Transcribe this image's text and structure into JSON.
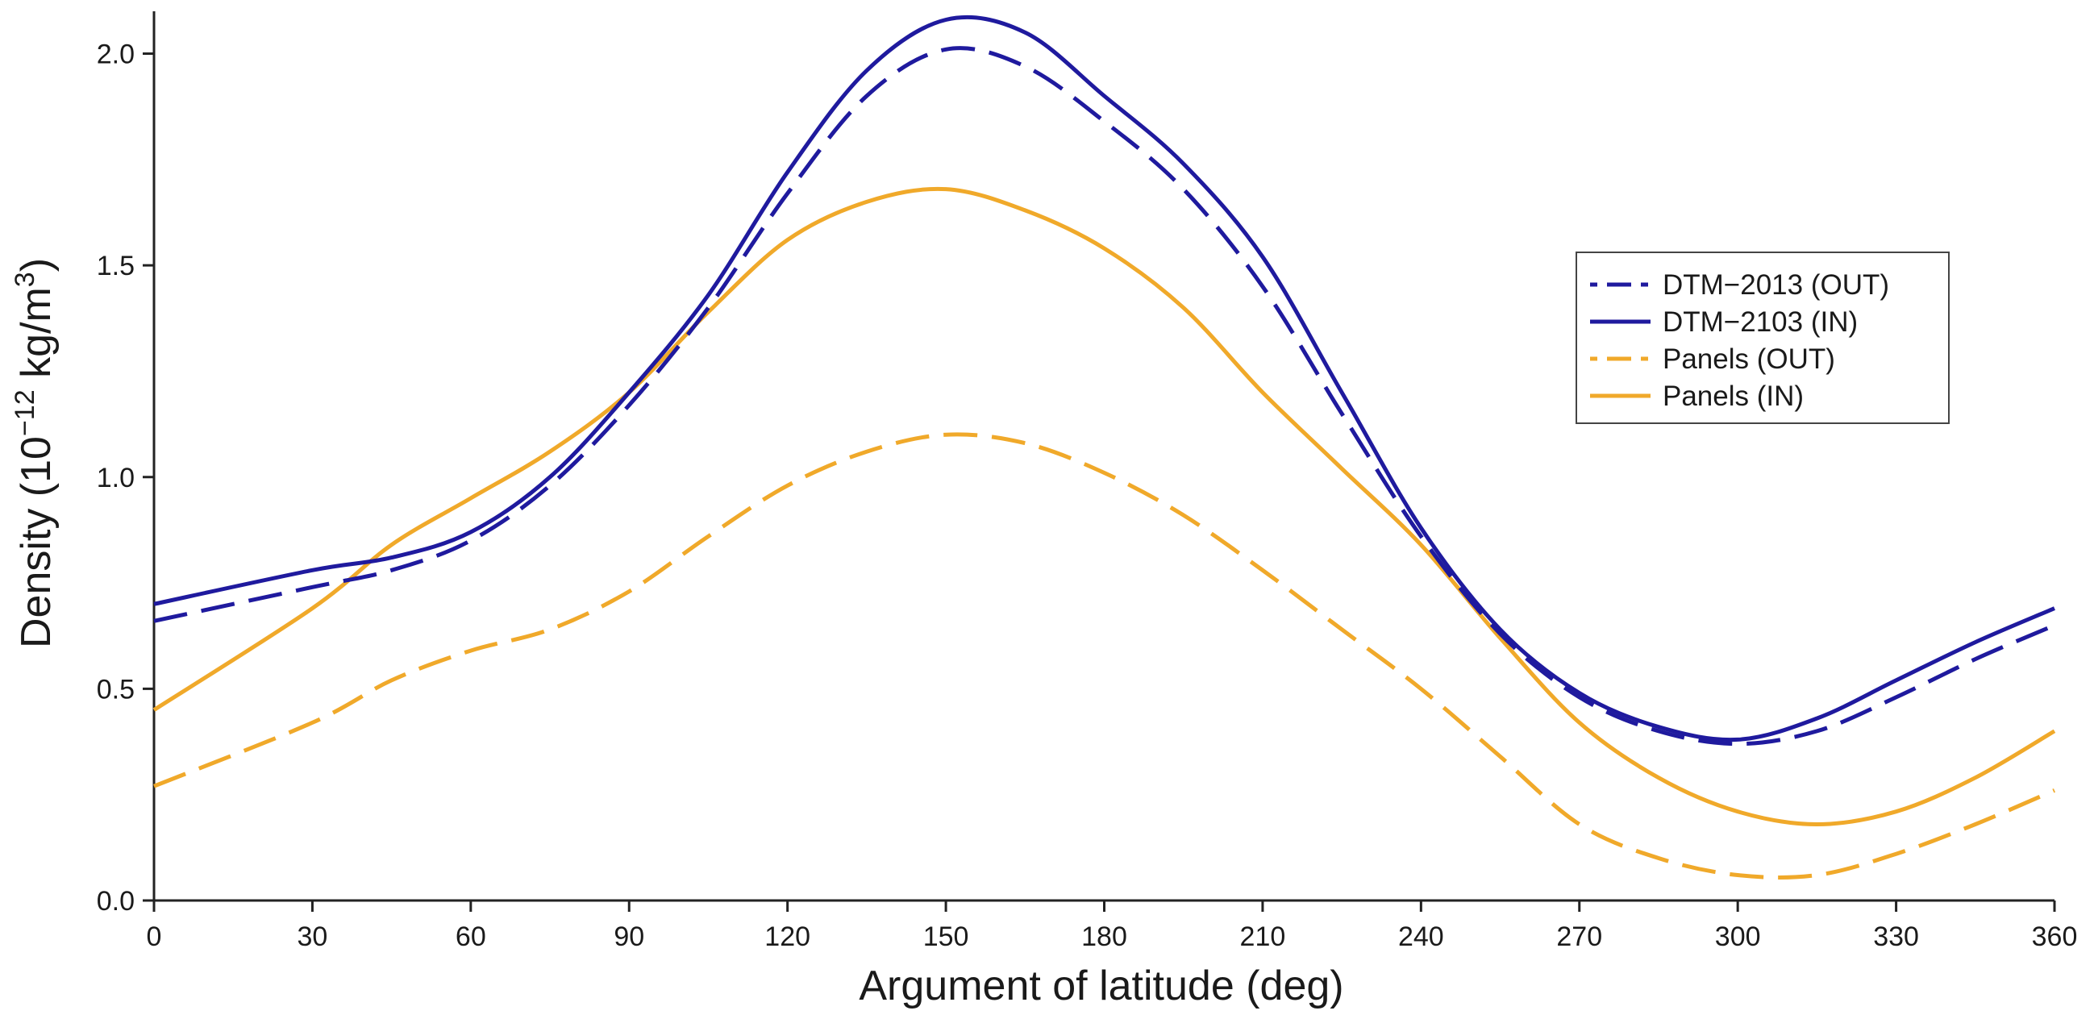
{
  "chart_data": {
    "type": "line",
    "xlabel": "Argument of latitude (deg)",
    "ylabel": {
      "prefix": "Density (10",
      "exp1": "−12",
      "mid": " kg/m",
      "exp2": "3",
      "suffix": ")"
    },
    "xlim": [
      0,
      360
    ],
    "ylim": [
      0,
      2.1
    ],
    "xticks": [
      0,
      30,
      60,
      90,
      120,
      150,
      180,
      210,
      240,
      270,
      300,
      330,
      360
    ],
    "yticks": [
      "0.0",
      "0.5",
      "1.0",
      "1.5",
      "2.0"
    ],
    "grid": false,
    "legend_position": "right",
    "series": [
      {
        "name": "DTM−2013 (OUT)",
        "color": "#1f1a9e",
        "style": "dashed",
        "x": [
          0,
          30,
          45,
          60,
          75,
          90,
          105,
          120,
          135,
          150,
          165,
          180,
          195,
          210,
          225,
          240,
          255,
          270,
          285,
          300,
          315,
          330,
          345,
          360
        ],
        "y": [
          0.66,
          0.74,
          0.78,
          0.85,
          0.98,
          1.17,
          1.4,
          1.67,
          1.9,
          2.01,
          1.97,
          1.84,
          1.68,
          1.45,
          1.15,
          0.86,
          0.63,
          0.48,
          0.4,
          0.37,
          0.4,
          0.48,
          0.57,
          0.65
        ]
      },
      {
        "name": "DTM−2103 (IN)",
        "color": "#1f1a9e",
        "style": "solid",
        "x": [
          0,
          30,
          45,
          60,
          75,
          90,
          105,
          120,
          135,
          150,
          165,
          180,
          195,
          210,
          225,
          240,
          255,
          270,
          285,
          300,
          315,
          330,
          345,
          360
        ],
        "y": [
          0.7,
          0.78,
          0.81,
          0.87,
          1.0,
          1.2,
          1.43,
          1.72,
          1.96,
          2.08,
          2.05,
          1.9,
          1.74,
          1.52,
          1.2,
          0.88,
          0.64,
          0.49,
          0.41,
          0.38,
          0.43,
          0.52,
          0.61,
          0.69
        ]
      },
      {
        "name": "Panels (OUT)",
        "color": "#f0a92a",
        "style": "dashed",
        "x": [
          0,
          30,
          45,
          60,
          75,
          90,
          105,
          120,
          135,
          150,
          165,
          180,
          195,
          210,
          225,
          240,
          255,
          270,
          285,
          300,
          315,
          330,
          345,
          360
        ],
        "y": [
          0.27,
          0.42,
          0.52,
          0.59,
          0.64,
          0.73,
          0.86,
          0.98,
          1.06,
          1.1,
          1.08,
          1.01,
          0.91,
          0.78,
          0.64,
          0.5,
          0.34,
          0.18,
          0.1,
          0.06,
          0.06,
          0.11,
          0.18,
          0.26
        ]
      },
      {
        "name": "Panels (IN)",
        "color": "#f0a92a",
        "style": "solid",
        "x": [
          0,
          30,
          45,
          60,
          75,
          90,
          105,
          120,
          135,
          150,
          165,
          180,
          195,
          210,
          225,
          240,
          255,
          270,
          285,
          300,
          315,
          330,
          345,
          360
        ],
        "y": [
          0.45,
          0.69,
          0.84,
          0.95,
          1.06,
          1.2,
          1.39,
          1.56,
          1.65,
          1.68,
          1.63,
          1.54,
          1.4,
          1.2,
          1.02,
          0.84,
          0.62,
          0.42,
          0.29,
          0.21,
          0.18,
          0.21,
          0.29,
          0.4
        ]
      }
    ]
  }
}
